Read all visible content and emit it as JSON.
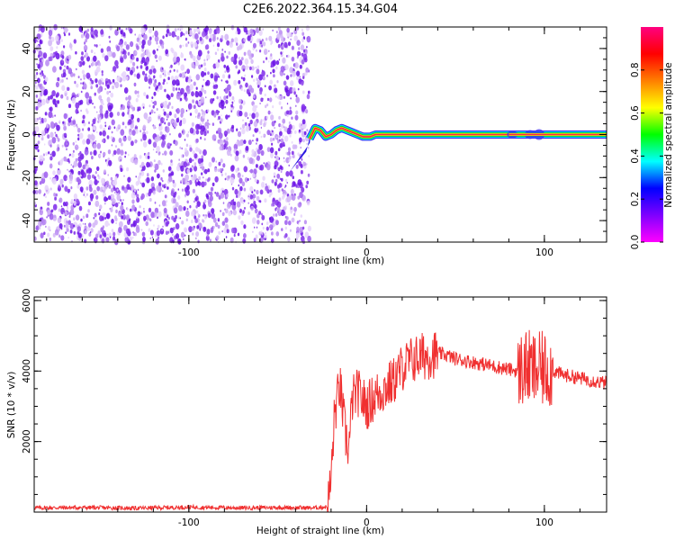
{
  "figure": {
    "title": "C2E6.2022.364.15.34.G04"
  },
  "chart_data": [
    {
      "type": "heatmap",
      "xlabel": "Height of straight line (km)",
      "ylabel": "Frequency (Hz)",
      "xlim": [
        -187,
        135
      ],
      "ylim": [
        -50,
        50
      ],
      "xticks": [
        -100,
        0,
        100
      ],
      "yticks": [
        -40,
        -20,
        0,
        20,
        40
      ],
      "noise_region_x": [
        -187,
        -32
      ],
      "signal_trace": [
        {
          "x": -32,
          "y": -2
        },
        {
          "x": -29,
          "y": 3
        },
        {
          "x": -26,
          "y": 2
        },
        {
          "x": -23,
          "y": -1
        },
        {
          "x": -20,
          "y": 0
        },
        {
          "x": -17,
          "y": 2
        },
        {
          "x": -14,
          "y": 3
        },
        {
          "x": -11,
          "y": 2
        },
        {
          "x": -8,
          "y": 1
        },
        {
          "x": -5,
          "y": 0
        },
        {
          "x": -2,
          "y": -1
        },
        {
          "x": 2,
          "y": -1
        },
        {
          "x": 5,
          "y": 0
        },
        {
          "x": 10,
          "y": 0
        },
        {
          "x": 135,
          "y": 0
        }
      ],
      "colorbar": {
        "label": "Normalized spectral amplitude",
        "range": [
          0,
          1
        ],
        "ticks": [
          "0.0",
          "0.2",
          "0.4",
          "0.6",
          "0.8"
        ],
        "colormap": [
          "#ff00ff",
          "#7f00ff",
          "#0000ff",
          "#00ffff",
          "#00ff00",
          "#ffff00",
          "#ff7f00",
          "#ff0000",
          "#ff0080"
        ]
      }
    },
    {
      "type": "line",
      "xlabel": "Height of straight line (km)",
      "ylabel": "SNR (10 * v/v)",
      "xlim": [
        -187,
        135
      ],
      "ylim": [
        0,
        6100
      ],
      "xticks": [
        -100,
        0,
        100
      ],
      "yticks": [
        2000,
        4000,
        6000
      ],
      "color": "#f03030",
      "series": [
        {
          "x": [
            -187,
            -160,
            -130,
            -100,
            -70,
            -50,
            -30,
            -22,
            -20,
            -18,
            -15,
            -12,
            -10,
            -8,
            -5,
            0,
            5,
            10,
            15,
            20,
            25,
            30,
            35,
            40,
            45,
            50,
            60,
            70,
            80,
            85,
            90,
            95,
            100,
            105,
            110,
            120,
            130,
            135
          ],
          "y": [
            120,
            130,
            110,
            140,
            120,
            130,
            120,
            150,
            900,
            2800,
            3600,
            2200,
            1800,
            3200,
            3400,
            3000,
            3300,
            3500,
            3700,
            4100,
            4300,
            4400,
            4450,
            4500,
            4450,
            4350,
            4250,
            4150,
            4050,
            4000,
            4100,
            4000,
            4050,
            4000,
            3900,
            3800,
            3700,
            3650
          ]
        }
      ]
    }
  ]
}
